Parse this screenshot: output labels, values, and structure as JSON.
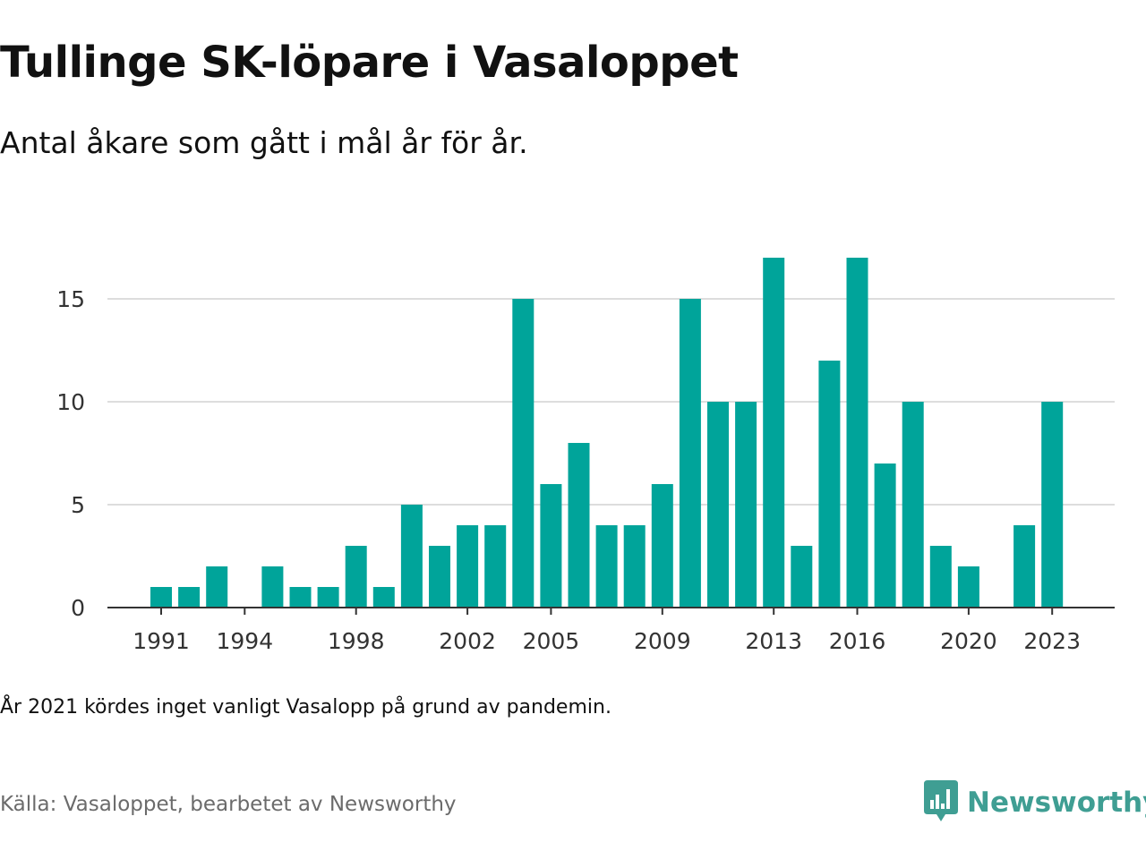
{
  "header": {
    "title": "Tullinge SK-löpare i Vasaloppet",
    "subtitle": "Antal åkare som gått i mål år för år."
  },
  "footer": {
    "note": "År 2021 kördes inget vanligt Vasalopp på grund av pandemin.",
    "source": "Källa: Vasaloppet, bearbetet av Newsworthy",
    "brand": "Newsworthy"
  },
  "colors": {
    "bar": "#00a49a",
    "grid": "#dddddd",
    "axis": "#333333",
    "brand": "#3f9e93",
    "source_text": "#6b6b6b"
  },
  "icons": {
    "brand_logo": "newsworthy-logo-icon"
  },
  "chart_data": {
    "type": "bar",
    "x": [
      1991,
      1992,
      1993,
      1994,
      1995,
      1996,
      1997,
      1998,
      1999,
      2000,
      2001,
      2002,
      2003,
      2004,
      2005,
      2006,
      2007,
      2008,
      2009,
      2010,
      2011,
      2012,
      2013,
      2014,
      2015,
      2016,
      2017,
      2018,
      2019,
      2020,
      2021,
      2022,
      2023
    ],
    "values": [
      1,
      1,
      2,
      0,
      2,
      1,
      1,
      3,
      1,
      5,
      3,
      4,
      4,
      15,
      6,
      8,
      4,
      4,
      6,
      15,
      10,
      10,
      17,
      3,
      12,
      17,
      7,
      10,
      3,
      2,
      0,
      4,
      10
    ],
    "x_ticks": [
      "1991",
      "1994",
      "1998",
      "2002",
      "2005",
      "2009",
      "2013",
      "2016",
      "2020",
      "2023"
    ],
    "y_ticks": [
      "0",
      "5",
      "10",
      "15"
    ],
    "ylim": [
      0,
      17
    ],
    "xlabel": "",
    "ylabel": "",
    "grid": true,
    "legend": "none"
  }
}
